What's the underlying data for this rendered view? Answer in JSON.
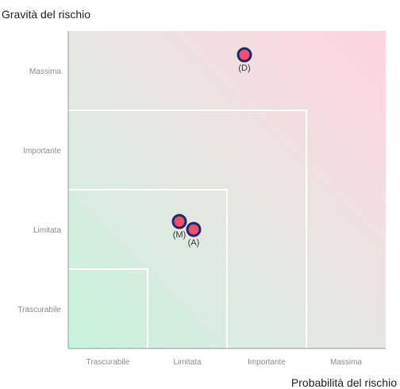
{
  "chart_data": {
    "type": "scatter",
    "title": "",
    "xlabel": "Probabilità del rischio",
    "ylabel": "Gravità del rischio",
    "x_categories": [
      "Trascurabile",
      "Limitata",
      "Importante",
      "Massima"
    ],
    "y_categories": [
      "Trascurabile",
      "Limitata",
      "Importante",
      "Massima"
    ],
    "xlim": [
      0,
      4
    ],
    "ylim": [
      0,
      4
    ],
    "grid": false,
    "points": [
      {
        "label": "(D)",
        "x": 2.22,
        "y": 3.7
      },
      {
        "label": "(M)",
        "x": 1.4,
        "y": 1.6
      },
      {
        "label": "(A)",
        "x": 1.58,
        "y": 1.5
      }
    ],
    "zones": [
      1,
      2,
      3
    ],
    "colors": {
      "low_risk": "#c7f3dc",
      "high_risk": "#ffd4de",
      "mid": "#e8e6e2",
      "point_fill": "#f0506e",
      "point_stroke": "#1e2a6e",
      "zone_line": "#ffffff",
      "axis": "#999999"
    }
  }
}
